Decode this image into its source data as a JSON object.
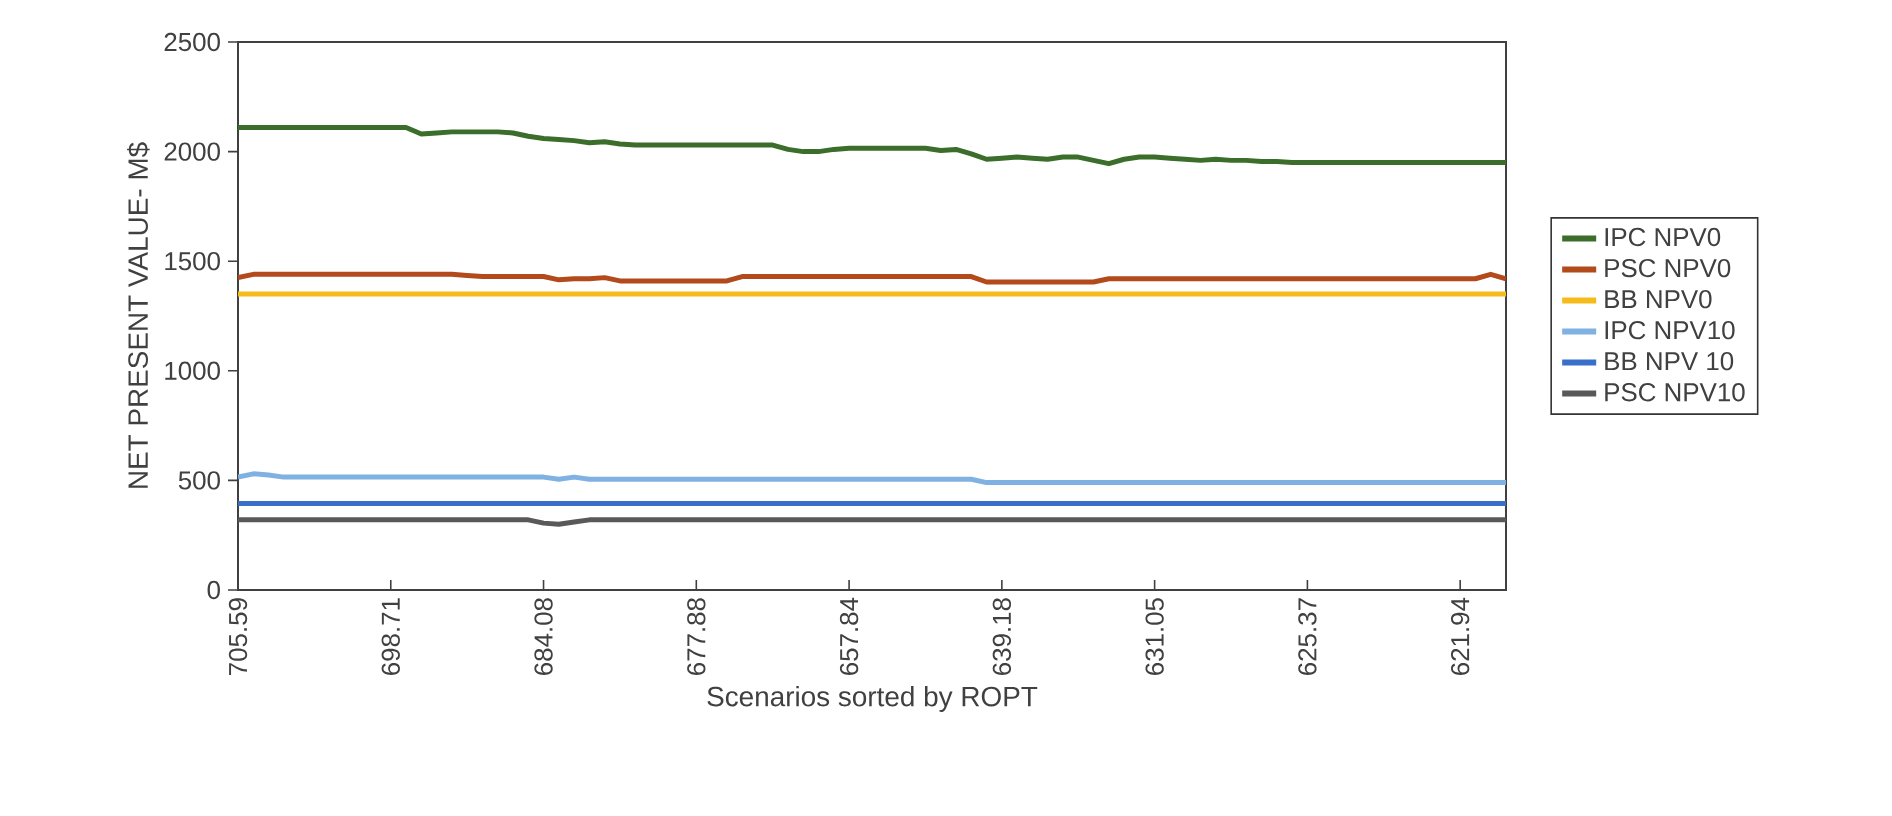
{
  "chart_data": {
    "type": "line",
    "xlabel": "Scenarios sorted by ROPT",
    "ylabel": "NET PRESENT VALUE- M$",
    "categories": [
      "705.59",
      null,
      null,
      null,
      null,
      null,
      null,
      null,
      null,
      null,
      "698.71",
      null,
      null,
      null,
      null,
      null,
      null,
      null,
      null,
      null,
      "684.08",
      null,
      null,
      null,
      null,
      null,
      null,
      null,
      null,
      null,
      "677.88",
      null,
      null,
      null,
      null,
      null,
      null,
      null,
      null,
      null,
      "657.84",
      null,
      null,
      null,
      null,
      null,
      null,
      null,
      null,
      null,
      "639.18",
      null,
      null,
      null,
      null,
      null,
      null,
      null,
      null,
      null,
      "631.05",
      null,
      null,
      null,
      null,
      null,
      null,
      null,
      null,
      null,
      "625.37",
      null,
      null,
      null,
      null,
      null,
      null,
      null,
      null,
      null,
      "621.94",
      null,
      null,
      null
    ],
    "series": [
      {
        "name": "IPC NPV0",
        "color": "#3b6e2b",
        "values": [
          2110,
          2110,
          2110,
          2110,
          2110,
          2110,
          2110,
          2110,
          2110,
          2110,
          2110,
          2110,
          2080,
          2085,
          2090,
          2090,
          2090,
          2090,
          2085,
          2070,
          2060,
          2055,
          2050,
          2040,
          2045,
          2035,
          2030,
          2030,
          2030,
          2030,
          2030,
          2030,
          2030,
          2030,
          2030,
          2030,
          2010,
          2000,
          2000,
          2010,
          2015,
          2015,
          2015,
          2015,
          2015,
          2015,
          2005,
          2010,
          1990,
          1965,
          1970,
          1975,
          1970,
          1965,
          1975,
          1975,
          1960,
          1945,
          1965,
          1975,
          1975,
          1970,
          1965,
          1960,
          1965,
          1960,
          1960,
          1955,
          1955,
          1950,
          1950,
          1950,
          1950,
          1950,
          1950,
          1950,
          1950,
          1950,
          1950,
          1950,
          1950,
          1950,
          1950,
          1950
        ]
      },
      {
        "name": "PSC NPV0",
        "color": "#b24a1c",
        "values": [
          1425,
          1440,
          1440,
          1440,
          1440,
          1440,
          1440,
          1440,
          1440,
          1440,
          1440,
          1440,
          1440,
          1440,
          1440,
          1435,
          1430,
          1430,
          1430,
          1430,
          1430,
          1415,
          1420,
          1420,
          1425,
          1410,
          1410,
          1410,
          1410,
          1410,
          1410,
          1410,
          1410,
          1430,
          1430,
          1430,
          1430,
          1430,
          1430,
          1430,
          1430,
          1430,
          1430,
          1430,
          1430,
          1430,
          1430,
          1430,
          1430,
          1405,
          1405,
          1405,
          1405,
          1405,
          1405,
          1405,
          1405,
          1420,
          1420,
          1420,
          1420,
          1420,
          1420,
          1420,
          1420,
          1420,
          1420,
          1420,
          1420,
          1420,
          1420,
          1420,
          1420,
          1420,
          1420,
          1420,
          1420,
          1420,
          1420,
          1420,
          1420,
          1420,
          1440,
          1420
        ]
      },
      {
        "name": "BB NPV0",
        "color": "#f5bb1c",
        "values": [
          1350,
          1350,
          1350,
          1350,
          1350,
          1350,
          1350,
          1350,
          1350,
          1350,
          1350,
          1350,
          1350,
          1350,
          1350,
          1350,
          1350,
          1350,
          1350,
          1350,
          1350,
          1350,
          1350,
          1350,
          1350,
          1350,
          1350,
          1350,
          1350,
          1350,
          1350,
          1350,
          1350,
          1350,
          1350,
          1350,
          1350,
          1350,
          1350,
          1350,
          1350,
          1350,
          1350,
          1350,
          1350,
          1350,
          1350,
          1350,
          1350,
          1350,
          1350,
          1350,
          1350,
          1350,
          1350,
          1350,
          1350,
          1350,
          1350,
          1350,
          1350,
          1350,
          1350,
          1350,
          1350,
          1350,
          1350,
          1350,
          1350,
          1350,
          1350,
          1350,
          1350,
          1350,
          1350,
          1350,
          1350,
          1350,
          1350,
          1350,
          1350,
          1350,
          1350,
          1350
        ]
      },
      {
        "name": "IPC NPV10",
        "color": "#7fb2e2",
        "values": [
          515,
          530,
          525,
          515,
          515,
          515,
          515,
          515,
          515,
          515,
          515,
          515,
          515,
          515,
          515,
          515,
          515,
          515,
          515,
          515,
          515,
          505,
          515,
          505,
          505,
          505,
          505,
          505,
          505,
          505,
          505,
          505,
          505,
          505,
          505,
          505,
          505,
          505,
          505,
          505,
          505,
          505,
          505,
          505,
          505,
          505,
          505,
          505,
          505,
          490,
          490,
          490,
          490,
          490,
          490,
          490,
          490,
          490,
          490,
          490,
          490,
          490,
          490,
          490,
          490,
          490,
          490,
          490,
          490,
          490,
          490,
          490,
          490,
          490,
          490,
          490,
          490,
          490,
          490,
          490,
          490,
          490,
          490,
          490
        ]
      },
      {
        "name": "BB NPV 10",
        "color": "#3a6fc9",
        "values": [
          395,
          395,
          395,
          395,
          395,
          395,
          395,
          395,
          395,
          395,
          395,
          395,
          395,
          395,
          395,
          395,
          395,
          395,
          395,
          395,
          395,
          395,
          395,
          395,
          395,
          395,
          395,
          395,
          395,
          395,
          395,
          395,
          395,
          395,
          395,
          395,
          395,
          395,
          395,
          395,
          395,
          395,
          395,
          395,
          395,
          395,
          395,
          395,
          395,
          395,
          395,
          395,
          395,
          395,
          395,
          395,
          395,
          395,
          395,
          395,
          395,
          395,
          395,
          395,
          395,
          395,
          395,
          395,
          395,
          395,
          395,
          395,
          395,
          395,
          395,
          395,
          395,
          395,
          395,
          395,
          395,
          395,
          395,
          395
        ]
      },
      {
        "name": "PSC NPV10",
        "color": "#595959",
        "values": [
          320,
          320,
          320,
          320,
          320,
          320,
          320,
          320,
          320,
          320,
          320,
          320,
          320,
          320,
          320,
          320,
          320,
          320,
          320,
          320,
          305,
          300,
          310,
          320,
          320,
          320,
          320,
          320,
          320,
          320,
          320,
          320,
          320,
          320,
          320,
          320,
          320,
          320,
          320,
          320,
          320,
          320,
          320,
          320,
          320,
          320,
          320,
          320,
          320,
          320,
          320,
          320,
          320,
          320,
          320,
          320,
          320,
          320,
          320,
          320,
          320,
          320,
          320,
          320,
          320,
          320,
          320,
          320,
          320,
          320,
          320,
          320,
          320,
          320,
          320,
          320,
          320,
          320,
          320,
          320,
          320,
          320,
          320,
          320
        ]
      }
    ],
    "ylim": [
      0,
      2500
    ],
    "yticks": [
      0,
      500,
      1000,
      1500,
      2000,
      2500
    ],
    "legend": "right"
  }
}
